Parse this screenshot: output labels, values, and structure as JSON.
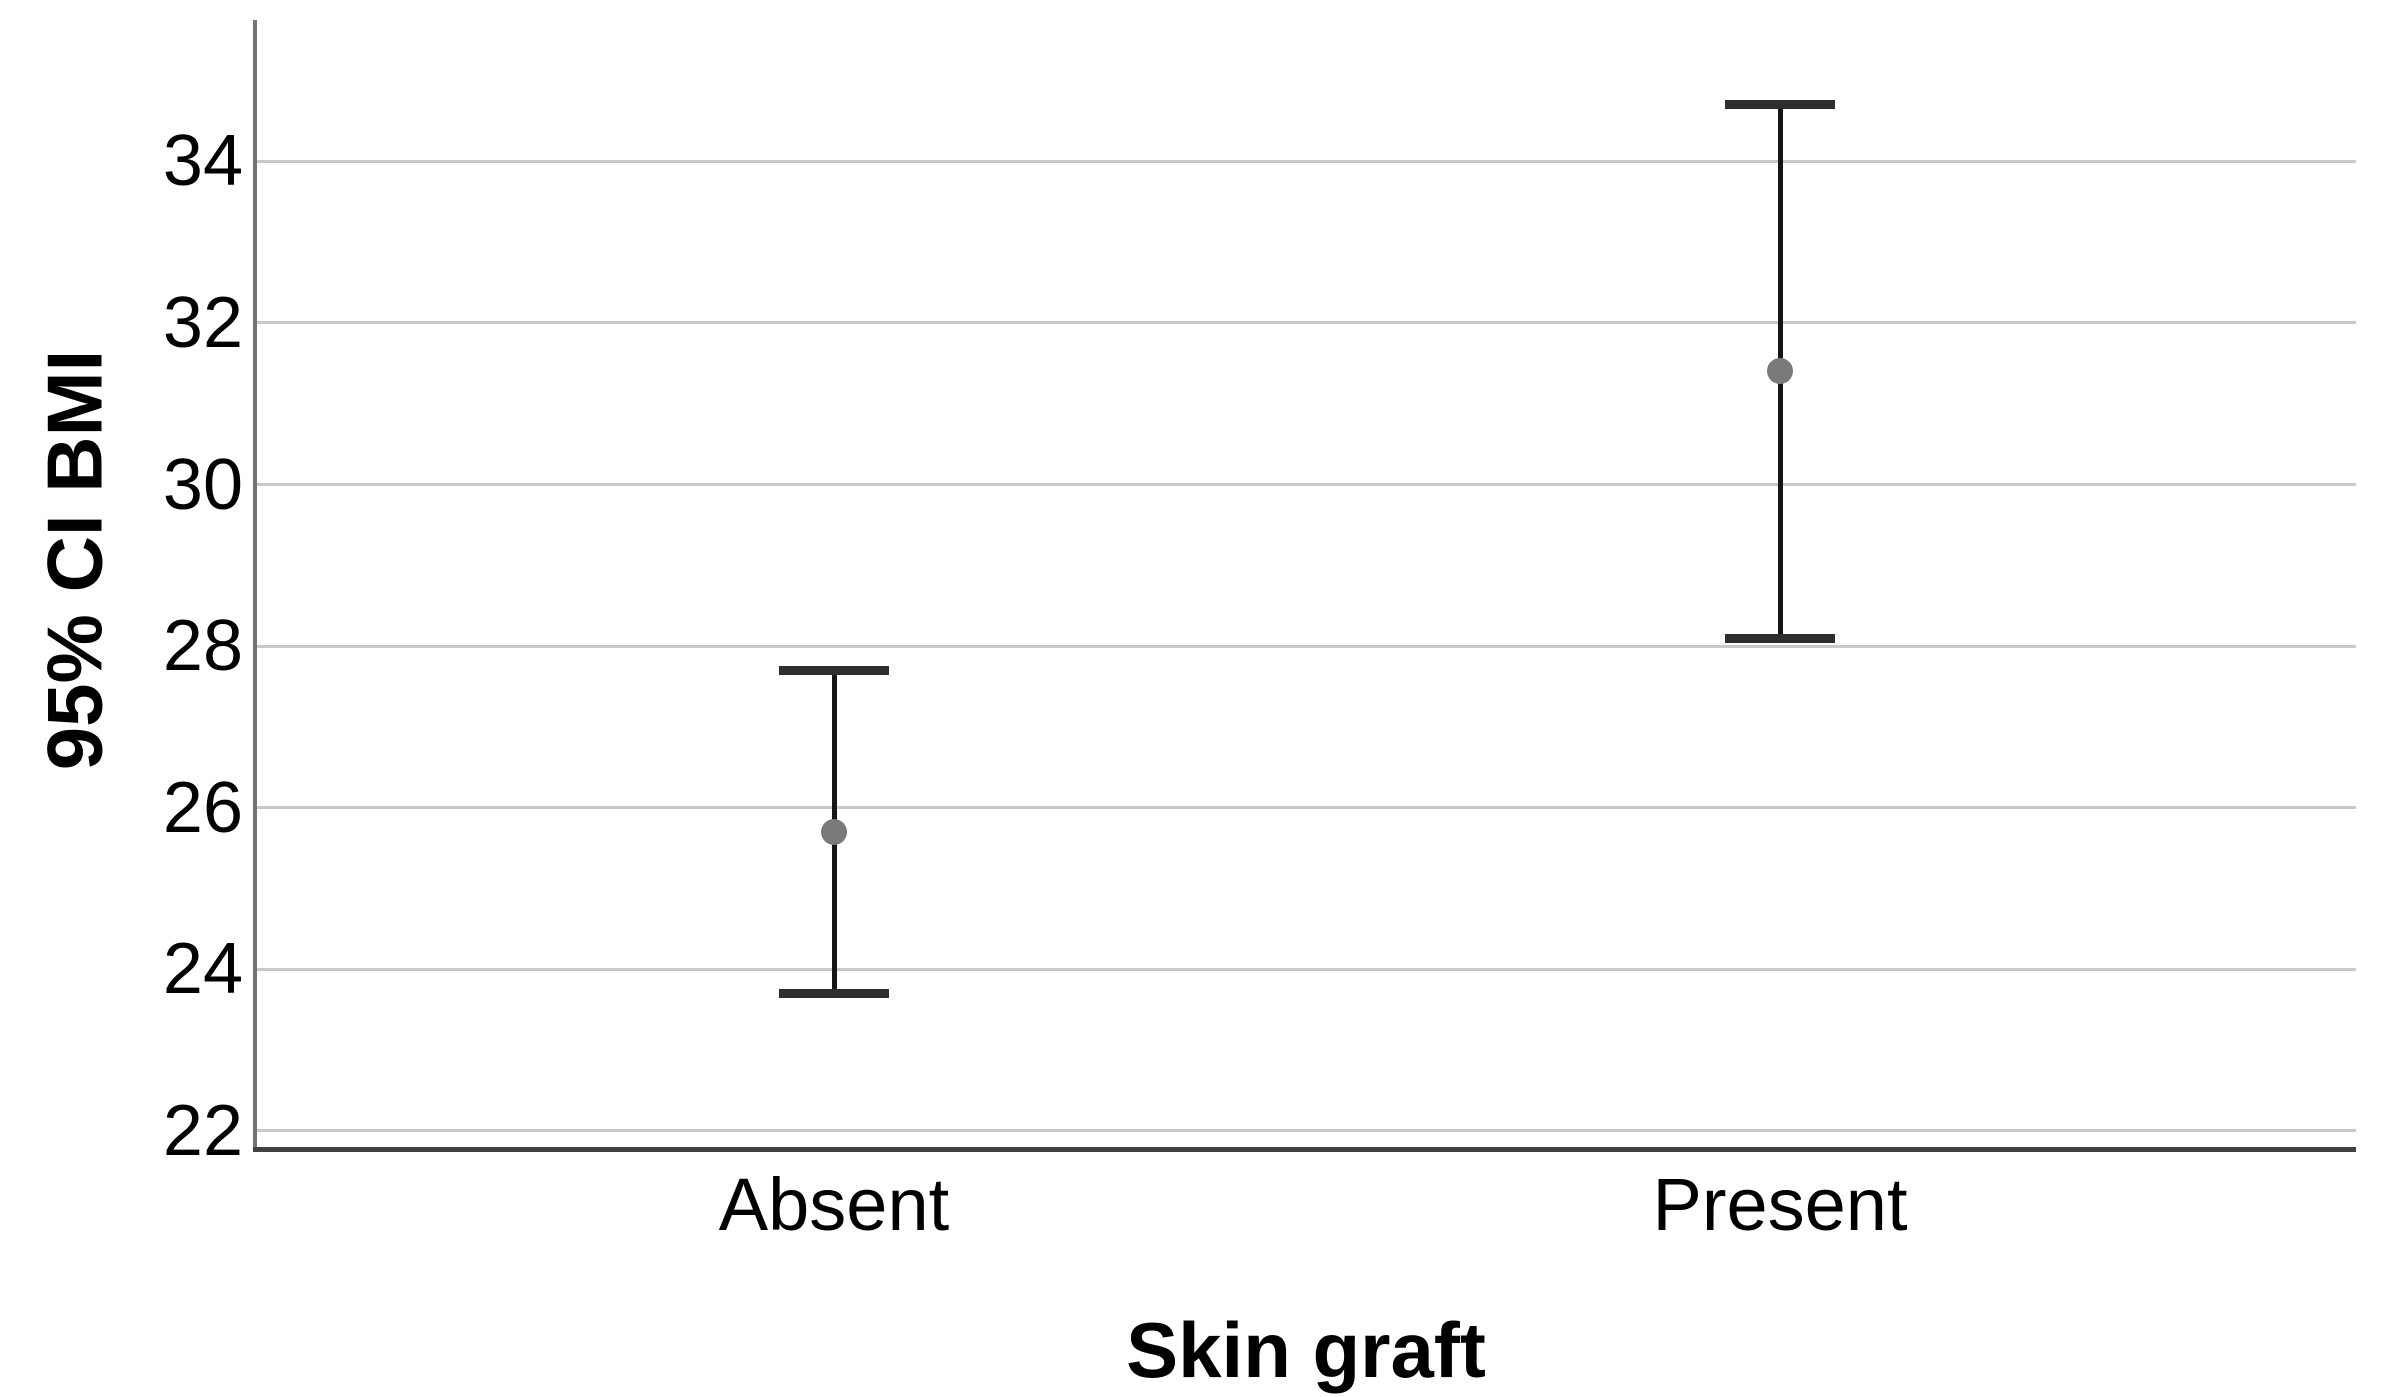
{
  "chart_data": {
    "type": "errorbar",
    "title": "",
    "xlabel": "Skin graft",
    "ylabel": "95% CI BMI",
    "categories": [
      "Absent",
      "Present"
    ],
    "series": [
      {
        "name": "95% CI BMI",
        "points": [
          {
            "category": "Absent",
            "mean": 25.7,
            "ci_low": 23.7,
            "ci_high": 27.7
          },
          {
            "category": "Present",
            "mean": 31.4,
            "ci_low": 28.1,
            "ci_high": 34.7
          }
        ]
      }
    ],
    "yticks": [
      34,
      32,
      30,
      28,
      26,
      24,
      22
    ],
    "ylim": [
      21.8,
      35.75
    ],
    "grid": "horizontal gridlines at each y tick",
    "legend": "none"
  },
  "colors": {
    "background": "#ffffff",
    "gridline": "#c9c9c9",
    "axis_left": "#757575",
    "axis_bottom": "#424242",
    "errorbar_line": "#161616",
    "errorbar_cap": "#2e2e2e",
    "mean_dot": "#7a7a7a",
    "text": "#000000"
  }
}
